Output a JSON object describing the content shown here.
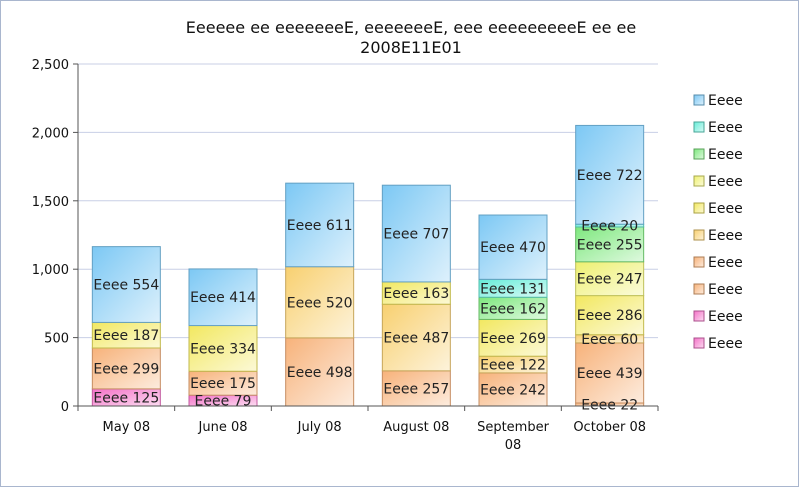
{
  "chart_data": {
    "type": "bar",
    "stacked": true,
    "title_lines": [
      "Eeeeee ee eeeeeeeE, eeeeeeeE, eee eeeeeeeeeE ee ee",
      "2008E11E01"
    ],
    "categories": [
      "May 08",
      "June 08",
      "July 08",
      "August 08",
      "September 08",
      "October 08"
    ],
    "category_label_lines": [
      [
        "May 08"
      ],
      [
        "June 08"
      ],
      [
        "July 08"
      ],
      [
        "August 08"
      ],
      [
        "September",
        "08"
      ],
      [
        "October 08"
      ]
    ],
    "ylim": [
      0,
      2500
    ],
    "yticks": [
      "0",
      "500",
      "1,000",
      "1,500",
      "2,000",
      "2,500"
    ],
    "grid": true,
    "legend_position": "right",
    "series": [
      {
        "name": "Eeee",
        "color": "#f472c8",
        "values": [
          125,
          79,
          0,
          0,
          0,
          0
        ]
      },
      {
        "name": "Eeee",
        "color": "#f472c8",
        "values": [
          0,
          0,
          0,
          0,
          0,
          0
        ]
      },
      {
        "name": "Eeee",
        "color": "#f7b27a",
        "values": [
          0,
          0,
          498,
          257,
          242,
          22
        ]
      },
      {
        "name": "Eeee",
        "color": "#f7b27a",
        "values": [
          299,
          175,
          0,
          0,
          0,
          439
        ]
      },
      {
        "name": "Eeee",
        "color": "#f8d070",
        "values": [
          0,
          0,
          520,
          487,
          122,
          60
        ]
      },
      {
        "name": "Eeee",
        "color": "#f2e860",
        "values": [
          187,
          334,
          0,
          163,
          269,
          286
        ]
      },
      {
        "name": "Eeee",
        "color": "#eef070",
        "values": [
          0,
          0,
          0,
          0,
          0,
          247
        ]
      },
      {
        "name": "Eeee",
        "color": "#7ee87e",
        "values": [
          0,
          0,
          0,
          0,
          162,
          255
        ]
      },
      {
        "name": "Eeee",
        "color": "#66ecd8",
        "values": [
          0,
          0,
          0,
          0,
          131,
          20
        ]
      },
      {
        "name": "Eeee",
        "color": "#7cc8f4",
        "values": [
          554,
          414,
          611,
          707,
          470,
          722
        ]
      }
    ],
    "data_label_prefix": "Eeee"
  }
}
